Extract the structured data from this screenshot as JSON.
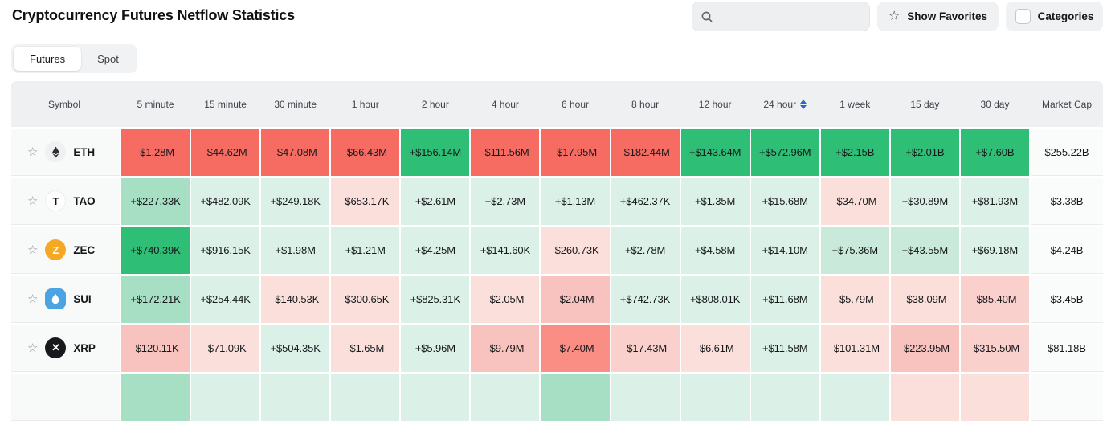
{
  "page": {
    "title": "Cryptocurrency Futures Netflow Statistics",
    "search": {
      "placeholder": "",
      "value": ""
    },
    "buttons": {
      "show_favorites": "Show Favorites",
      "categories": "Categories"
    }
  },
  "tabs": [
    {
      "label": "Futures"
    },
    {
      "label": "Spot"
    }
  ],
  "active_tab": "Futures",
  "colors": {
    "sort_icon": "#2a66c8",
    "header_bg": "#eef0f2",
    "neutral_row_bg": "#f8f9f9",
    "palette": {
      "g1": "#dbf0e6",
      "g15": "#c9e9da",
      "g2": "#a6dfc3",
      "g3": "#2fbe76",
      "r1": "#fbdfdb",
      "r15": "#f9d0cc",
      "r2": "#f8c3be",
      "r3": "#f76c62",
      "r4": "#fa8d84"
    }
  },
  "table": {
    "columns": [
      "Symbol",
      "5 minute",
      "15 minute",
      "30 minute",
      "1 hour",
      "2 hour",
      "4 hour",
      "6 hour",
      "8 hour",
      "12 hour",
      "24 hour",
      "1 week",
      "15 day",
      "30 day",
      "Market Cap"
    ],
    "sort_column": "24 hour",
    "rows": [
      {
        "symbol": "ETH",
        "icon": "ethereum-icon",
        "icon_bg": "#eef0f1",
        "icon_fg": "#2c2f36",
        "values": [
          "-$1.28M",
          "-$44.62M",
          "-$47.08M",
          "-$66.43M",
          "+$156.14M",
          "-$111.56M",
          "-$17.95M",
          "-$182.44M",
          "+$143.64M",
          "+$572.96M",
          "+$2.15B",
          "+$2.01B",
          "+$7.60B"
        ],
        "tones": [
          "r3",
          "r3",
          "r3",
          "r3",
          "g3",
          "r3",
          "r3",
          "r3",
          "g3",
          "g3",
          "g3",
          "g3",
          "g3"
        ],
        "market_cap": "$255.22B"
      },
      {
        "symbol": "TAO",
        "icon": "tao-icon",
        "icon_bg": "#ffffff",
        "icon_fg": "#111111",
        "values": [
          "+$227.33K",
          "+$482.09K",
          "+$249.18K",
          "-$653.17K",
          "+$2.61M",
          "+$2.73M",
          "+$1.13M",
          "+$462.37K",
          "+$1.35M",
          "+$15.68M",
          "-$34.70M",
          "+$30.89M",
          "+$81.93M"
        ],
        "tones": [
          "g2",
          "g1",
          "g1",
          "r1",
          "g1",
          "g1",
          "g1",
          "g1",
          "g1",
          "g1",
          "r1",
          "g1",
          "g1"
        ],
        "market_cap": "$3.38B"
      },
      {
        "symbol": "ZEC",
        "icon": "zcash-icon",
        "icon_bg": "#f5a824",
        "icon_fg": "#ffffff",
        "values": [
          "+$740.39K",
          "+$916.15K",
          "+$1.98M",
          "+$1.21M",
          "+$4.25M",
          "+$141.60K",
          "-$260.73K",
          "+$2.78M",
          "+$4.58M",
          "+$14.10M",
          "+$75.36M",
          "+$43.55M",
          "+$69.18M"
        ],
        "tones": [
          "g3",
          "g1",
          "g1",
          "g1",
          "g1",
          "g1",
          "r1",
          "g1",
          "g1",
          "g1",
          "g15",
          "g15",
          "g1"
        ],
        "market_cap": "$4.24B"
      },
      {
        "symbol": "SUI",
        "icon": "sui-icon",
        "icon_bg": "#4ca3e2",
        "icon_fg": "#ffffff",
        "values": [
          "+$172.21K",
          "+$254.44K",
          "-$140.53K",
          "-$300.65K",
          "+$825.31K",
          "-$2.05M",
          "-$2.04M",
          "+$742.73K",
          "+$808.01K",
          "+$11.68M",
          "-$5.79M",
          "-$38.09M",
          "-$85.40M"
        ],
        "tones": [
          "g2",
          "g1",
          "r1",
          "r1",
          "g1",
          "r1",
          "r2",
          "g1",
          "g1",
          "g1",
          "r1",
          "r1",
          "r15"
        ],
        "market_cap": "$3.45B"
      },
      {
        "symbol": "XRP",
        "icon": "xrp-icon",
        "icon_bg": "#17191c",
        "icon_fg": "#ffffff",
        "values": [
          "-$120.11K",
          "-$71.09K",
          "+$504.35K",
          "-$1.65M",
          "+$5.96M",
          "-$9.79M",
          "-$7.40M",
          "-$17.43M",
          "-$6.61M",
          "+$11.58M",
          "-$101.31M",
          "-$223.95M",
          "-$315.50M"
        ],
        "tones": [
          "r2",
          "r1",
          "g1",
          "r1",
          "g1",
          "r2",
          "r4",
          "r15",
          "r1",
          "g1",
          "r1",
          "r2",
          "r15"
        ],
        "market_cap": "$81.18B"
      }
    ],
    "partial_row": {
      "tones": [
        "g2",
        "g1",
        "g1",
        "g1",
        "g1",
        "g1",
        "g2",
        "g1",
        "g1",
        "g1",
        "g1",
        "r1",
        "r1"
      ]
    }
  }
}
